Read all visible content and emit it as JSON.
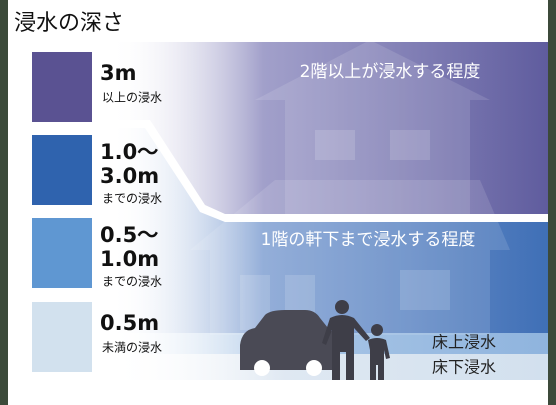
{
  "header": {
    "title": "浸水の深さ"
  },
  "legend": [
    {
      "label": [
        "3m"
      ],
      "sublabel": "以上の浸水",
      "color": "#5a5292"
    },
    {
      "label": [
        "1.0～",
        "3.0m"
      ],
      "sublabel": "までの浸水",
      "color": "#2f63ae"
    },
    {
      "label": [
        "0.5～",
        "1.0m"
      ],
      "sublabel": "までの浸水",
      "color": "#5f97d2"
    },
    {
      "label": [
        "0.5m"
      ],
      "sublabel": "未満の浸水",
      "color": "#d2e1ee"
    }
  ],
  "bands": {
    "upper": "2階以上が浸水する程度",
    "eaves": "1階の軒下まで浸水する程度",
    "above_floor": "床上浸水",
    "below_floor": "床下浸水"
  }
}
